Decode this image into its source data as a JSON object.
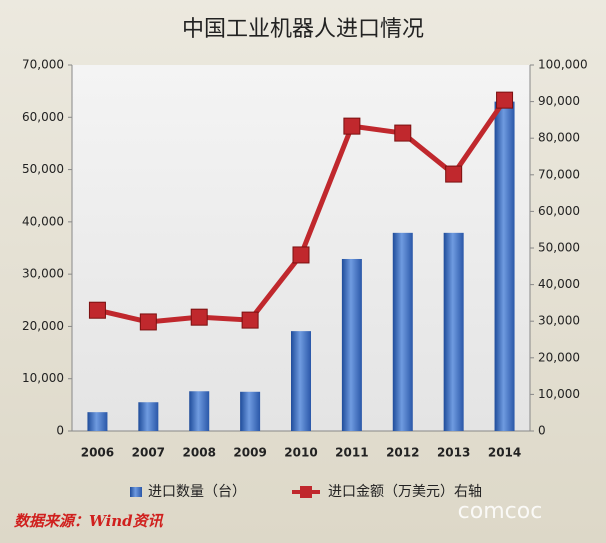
{
  "chart_data": {
    "type": "bar-line",
    "title": "中国工业机器人进口情况",
    "categories": [
      "2006",
      "2007",
      "2008",
      "2009",
      "2010",
      "2011",
      "2012",
      "2013",
      "2014"
    ],
    "series": [
      {
        "name": "进口数量（台）",
        "type": "bar",
        "color": "#3a6cc0",
        "values": [
          3600,
          5500,
          7600,
          7500,
          19100,
          32900,
          37900,
          37900,
          63000
        ]
      },
      {
        "name": "进口金额（万美元）右轴",
        "type": "line",
        "axis": "y2",
        "color": "#c0282d",
        "values": [
          33000,
          29800,
          31100,
          30300,
          48100,
          83300,
          81400,
          70200,
          90400
        ]
      }
    ],
    "ylim": [
      0,
      70000
    ],
    "yticks": [
      0,
      {
        "value": 10000,
        "label": "10,000"
      },
      {
        "value": 20000,
        "label": "20,000"
      },
      {
        "value": 30000,
        "label": "30,000"
      },
      {
        "value": 40000,
        "label": "40,000"
      },
      {
        "value": 50000,
        "label": "50,000"
      },
      {
        "value": 60000,
        "label": "60,000"
      },
      {
        "value": 70000,
        "label": "70,000"
      }
    ],
    "y2lim": [
      0,
      100000
    ],
    "y2ticks": [
      0,
      {
        "value": 10000,
        "label": "10,000"
      },
      {
        "value": 20000,
        "label": "20,000"
      },
      {
        "value": 30000,
        "label": "30,000"
      },
      {
        "value": 40000,
        "label": "40,000"
      },
      {
        "value": 50000,
        "label": "50,000"
      },
      {
        "value": 60000,
        "label": "60,000"
      },
      {
        "value": 70000,
        "label": "70,000"
      },
      {
        "value": 80000,
        "label": "80,000"
      },
      {
        "value": 90000,
        "label": "90,000"
      },
      {
        "value": 100000,
        "label": "100,000"
      }
    ],
    "legend": "bottom",
    "source": "数据来源：Wind资讯",
    "watermark": "comcoc"
  }
}
